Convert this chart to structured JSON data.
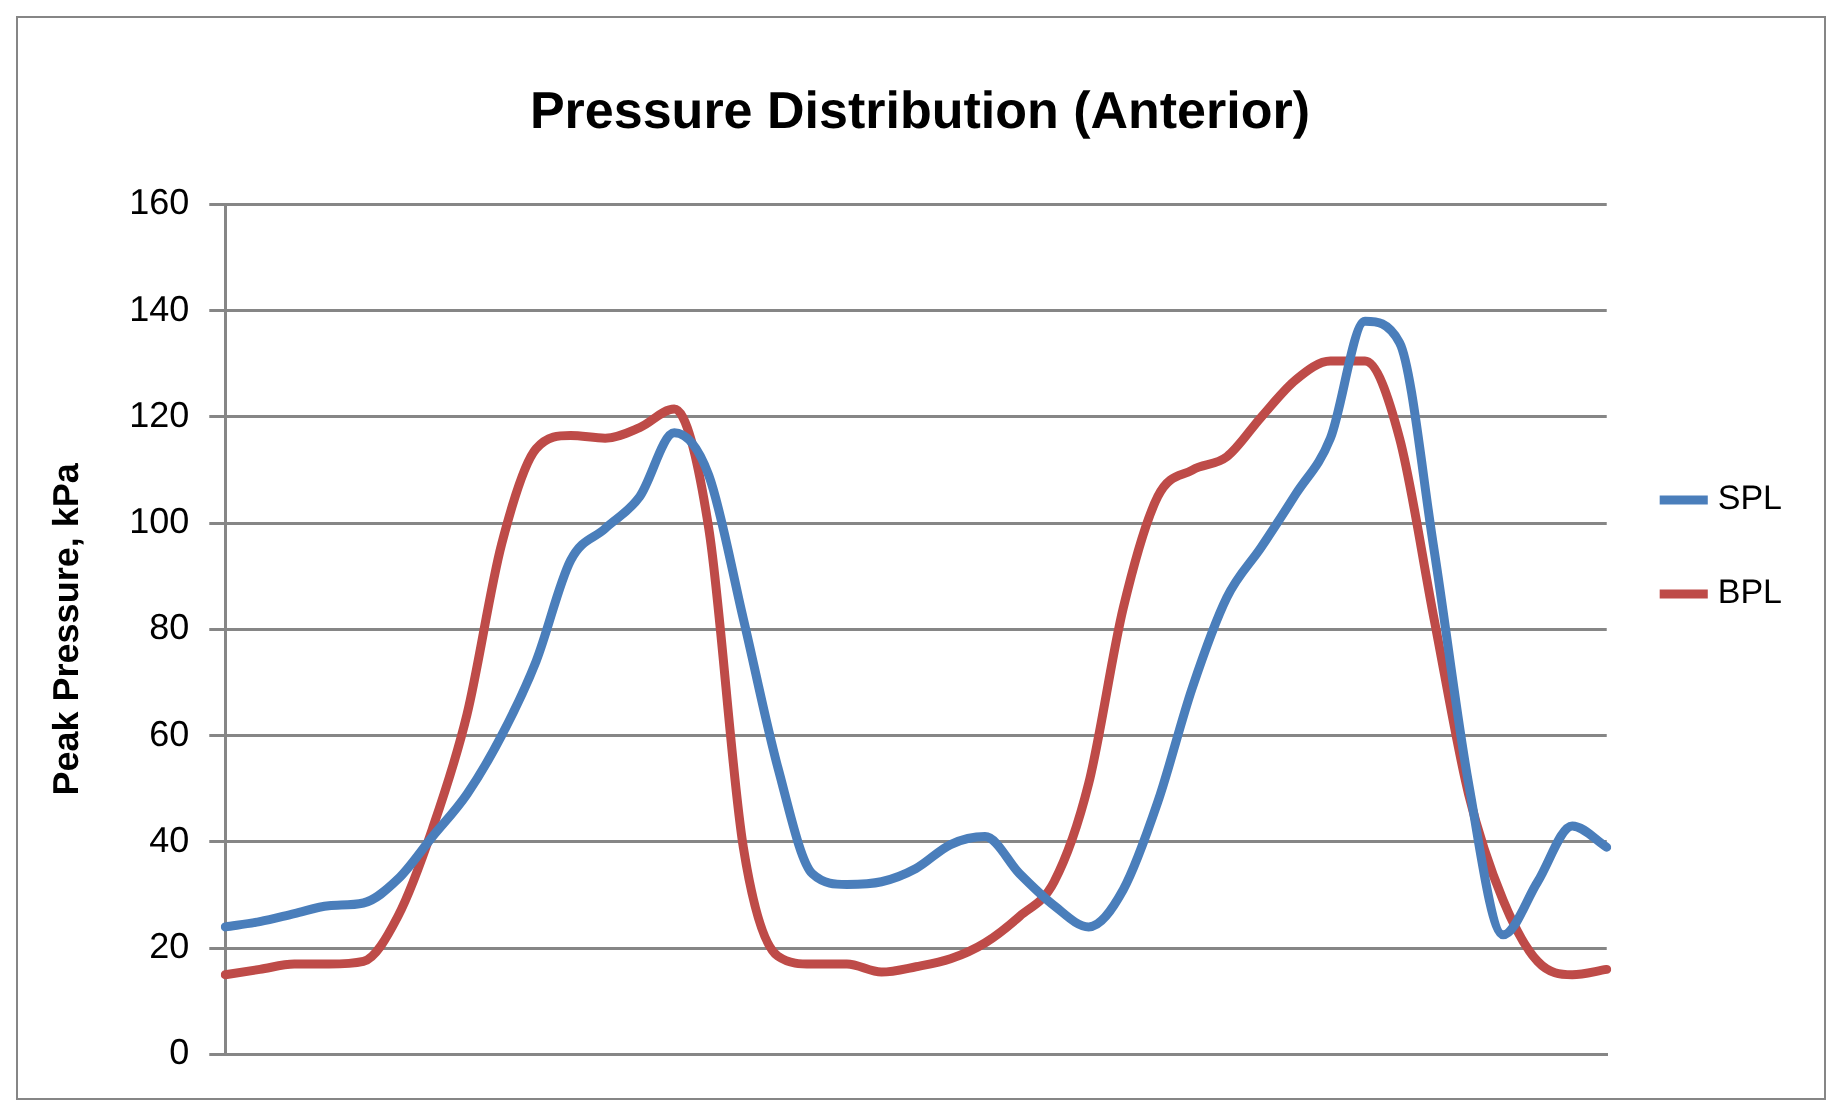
{
  "chart_data": {
    "type": "line",
    "title": "Pressure Distribution (Anterior)",
    "ylabel": "Peak Pressure, kPa",
    "categories": [
      null,
      null,
      null,
      null,
      null,
      null,
      null,
      null,
      null,
      null,
      null,
      null,
      null,
      null,
      null,
      null,
      null,
      null,
      null,
      null,
      null,
      null,
      null,
      null,
      null,
      null,
      null,
      null,
      null,
      null,
      null,
      null,
      null,
      null,
      null,
      null,
      null,
      null,
      null,
      null,
      null
    ],
    "series": [
      {
        "name": "SPL",
        "color": "#4a7ebb",
        "values": [
          24,
          25,
          26.5,
          28,
          28.5,
          33,
          41,
          49,
          60,
          74,
          93,
          99,
          105,
          117,
          109,
          82,
          54,
          34,
          32,
          32.5,
          35,
          39.5,
          41,
          34,
          28,
          24,
          31,
          47.5,
          69,
          86,
          95.5,
          105.5,
          116,
          138,
          134,
          95,
          51,
          22.5,
          32.5,
          43,
          39
        ]
      },
      {
        "name": "BPL",
        "color": "#be4b48",
        "values": [
          15,
          16,
          17,
          17,
          17.5,
          26,
          42.5,
          64,
          96,
          114,
          116.5,
          116,
          118,
          121.5,
          99,
          39,
          18.5,
          17,
          17,
          15.5,
          16.5,
          18,
          21,
          26,
          32.5,
          51,
          84,
          105,
          110,
          112.5,
          120,
          127,
          130.5,
          130.5,
          116,
          82,
          49,
          29,
          17.5,
          15,
          16
        ]
      }
    ],
    "ylim": [
      0,
      160
    ],
    "yticks": [
      0,
      20,
      40,
      60,
      80,
      100,
      120,
      140,
      160
    ],
    "grid": "y",
    "legend": "right",
    "marker": "none",
    "line_style": "solid",
    "tick_labels": "y"
  }
}
